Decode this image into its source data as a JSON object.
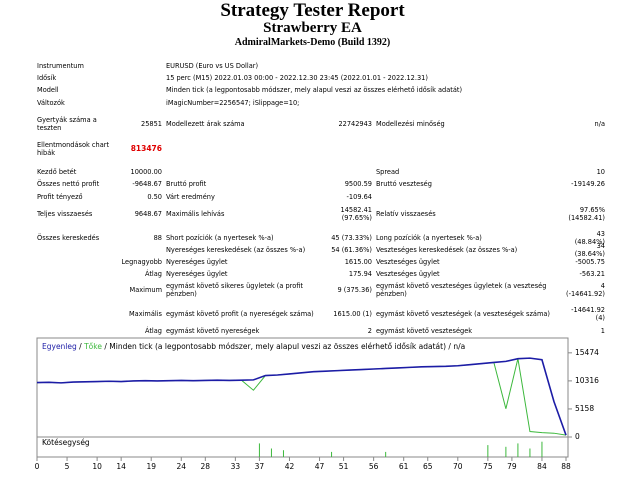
{
  "header": {
    "title": "Strategy Tester Report",
    "subtitle": "Strawberry EA",
    "server": "AdmiralMarkets-Demo (Build 1392)"
  },
  "table": {
    "rows": [
      [
        "Instrumentum",
        null,
        "EURUSD (Euro vs US Dollar)",
        null,
        null,
        null
      ],
      [
        "Idősík",
        null,
        "15 perc (M15) 2022.01.03 00:00 - 2022.12.30 23:45 (2022.01.01 - 2022.12.31)",
        null,
        null,
        null
      ],
      [
        "Modell",
        null,
        "Minden tick (a legpontosabb módszer, mely alapul veszi az összes elérhető idősík adatát)",
        null,
        null,
        null
      ],
      [
        "Változók",
        null,
        "iMagicNumber=2256547; iSlippage=10;",
        null,
        null,
        null
      ],
      [
        "Gyertyák száma a teszten",
        "25851",
        "Modellezett árak száma",
        "22742943",
        "Modellezési minőség",
        "n/a"
      ],
      [
        "Ellentmondások chart hibák",
        "813476",
        null,
        null,
        null,
        null
      ],
      [
        "Kezdő betét",
        "10000.00",
        null,
        null,
        "Spread",
        "10"
      ],
      [
        "Összes nettó profit",
        "-9648.67",
        "Bruttó profit",
        "9500.59",
        "Bruttó veszteség",
        "-19149.26"
      ],
      [
        "Profit tényező",
        "0.50",
        "Várt eredmény",
        "-109.64",
        null,
        null
      ],
      [
        "Teljes visszaesés",
        "9648.67",
        "Maximális lehívás",
        "14582.41 (97.65%)",
        "Relatív visszaesés",
        "97.65% (14582.41)"
      ],
      [
        "Összes kereskedés",
        "88",
        "Short pozíciók (a nyertesek %-a)",
        "45 (73.33%)",
        "Long pozíciók (a nyertesek %-a)",
        "43 (48.84%)"
      ],
      [
        null,
        null,
        "Nyereséges kereskedések (az összes %-a)",
        "54 (61.36%)",
        "Veszteséges kereskedések (az összes %-a)",
        "34 (38.64%)"
      ],
      [
        null,
        "Legnagyobb",
        "Nyereséges ügylet",
        "1615.00",
        "Veszteséges ügylet",
        "-5005.75"
      ],
      [
        null,
        "Átlag",
        "Nyereséges ügylet",
        "175.94",
        "Veszteséges ügylet",
        "-563.21"
      ],
      [
        null,
        "Maximum",
        "egymást követő sikeres ügyletek (a profit pénzben)",
        "9 (375.36)",
        "egymást követő veszteséges ügyletek (a veszteség pénzben)",
        "4 (-14641.92)"
      ],
      [
        null,
        "Maximális",
        "egymást követő profit (a nyereségek száma)",
        "1615.00 (1)",
        "egymást követő veszteségek (a veszteségek száma)",
        "-14641.92 (4)"
      ],
      [
        null,
        "Átlag",
        "egymást követő nyereségek",
        "2",
        "egymást követő veszteségek",
        "1"
      ]
    ]
  },
  "chart_data": {
    "type": "line",
    "separator": "/",
    "subtitle": "Minden tick (a legpontosabb módszer, mely alapul veszi az összes elérhető idősík adatát)",
    "quality": "n/a",
    "x": [
      0,
      2,
      4,
      6,
      8,
      10,
      12,
      14,
      16,
      18,
      20,
      22,
      24,
      26,
      28,
      30,
      32,
      34,
      36,
      38,
      40,
      42,
      44,
      46,
      48,
      50,
      52,
      54,
      56,
      58,
      60,
      62,
      64,
      66,
      68,
      70,
      72,
      74,
      76,
      78,
      80,
      82,
      84,
      86,
      88
    ],
    "series": [
      {
        "name": "Egyenleg",
        "color": "#1c1ca6",
        "values": [
          10000,
          10050,
          9950,
          10100,
          10150,
          10200,
          10250,
          10200,
          10300,
          10350,
          10300,
          10350,
          10400,
          10350,
          10400,
          10450,
          10400,
          10450,
          10500,
          11300,
          11400,
          11600,
          11800,
          12000,
          12100,
          12200,
          12300,
          12400,
          12500,
          12600,
          12700,
          12800,
          12900,
          12950,
          13000,
          13100,
          13300,
          13500,
          13700,
          13900,
          14400,
          14500,
          14200,
          6500,
          351
        ]
      },
      {
        "name": "Tőke",
        "color": "#3cb83c",
        "values": [
          10000,
          10050,
          9950,
          10100,
          10150,
          10200,
          10250,
          10200,
          10300,
          10350,
          10300,
          10350,
          10400,
          10350,
          10400,
          10450,
          10400,
          10450,
          8600,
          11300,
          11400,
          11600,
          11800,
          12000,
          12100,
          12200,
          12300,
          12400,
          12500,
          12600,
          12700,
          12800,
          12900,
          12950,
          13000,
          13100,
          13300,
          13500,
          13700,
          5200,
          14400,
          1000,
          800,
          700,
          351
        ]
      }
    ],
    "xlim": [
      0,
      88
    ],
    "xticks": [
      0,
      5,
      10,
      14,
      19,
      24,
      28,
      33,
      37,
      42,
      47,
      51,
      56,
      61,
      65,
      70,
      75,
      79,
      84,
      88
    ],
    "ylim": [
      0,
      18200
    ],
    "yticks": [
      15474,
      10316,
      5158,
      0
    ],
    "volume": {
      "name": "Kötésegység",
      "color": "#3cb83c",
      "x": [
        37,
        39,
        41,
        49,
        58,
        75,
        78,
        80,
        82,
        84
      ],
      "values": [
        0.8,
        0.5,
        0.4,
        0.3,
        0.3,
        0.7,
        0.6,
        0.8,
        0.5,
        0.9
      ],
      "vlim": [
        0,
        1
      ]
    }
  }
}
